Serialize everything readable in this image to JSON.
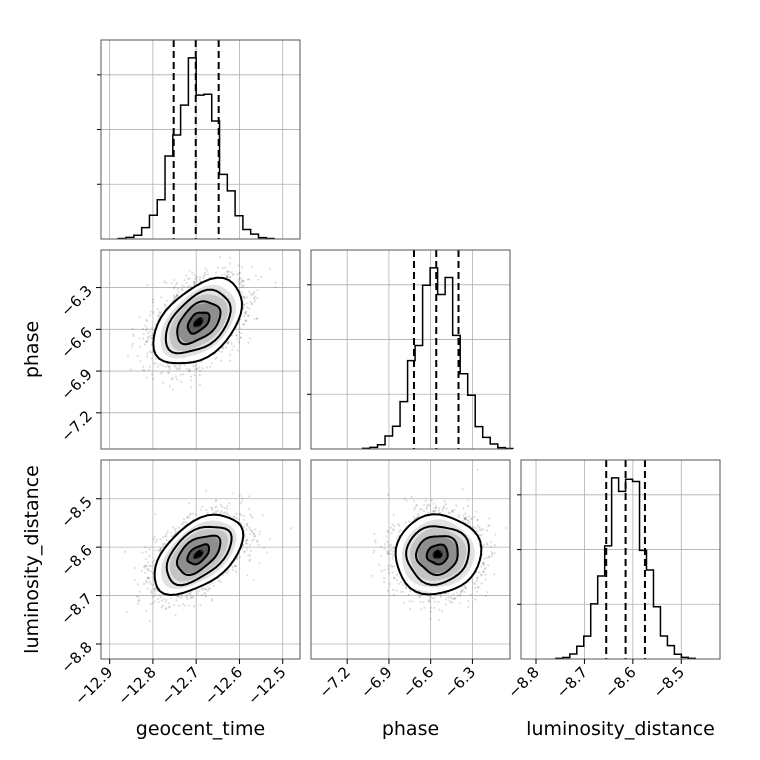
{
  "chart_data": {
    "type": "corner",
    "parameters": [
      "geocent_time",
      "phase",
      "luminosity_distance"
    ],
    "grid": true,
    "contour_levels": 4,
    "axes": {
      "geocent_time": {
        "range": [
          -12.92,
          -12.46
        ],
        "ticks": [
          -12.9,
          -12.8,
          -12.7,
          -12.6,
          -12.5
        ],
        "tick_labels": [
          "−12.9",
          "−12.8",
          "−12.7",
          "−12.6",
          "−12.5"
        ]
      },
      "phase": {
        "range": [
          -7.46,
          -6.03
        ],
        "ticks": [
          -7.2,
          -6.9,
          -6.6,
          -6.3
        ],
        "tick_labels": [
          "−7.2",
          "−6.9",
          "−6.6",
          "−6.3"
        ]
      },
      "luminosity_distance": {
        "range": [
          -8.831,
          -8.42
        ],
        "ticks": [
          -8.8,
          -8.7,
          -8.6,
          -8.5
        ],
        "tick_labels": [
          "−8.8",
          "−8.7",
          "−8.6",
          "−8.5"
        ]
      }
    },
    "marginals": {
      "geocent_time": {
        "mean": -12.7,
        "sigma": 0.05,
        "quantiles": [
          -12.752,
          -12.701,
          -12.648
        ]
      },
      "phase": {
        "mean": -6.55,
        "sigma": 0.15,
        "quantiles": [
          -6.72,
          -6.56,
          -6.4
        ]
      },
      "luminosity_distance": {
        "mean": -8.615,
        "sigma": 0.04,
        "quantiles": [
          -8.655,
          -8.615,
          -8.575
        ]
      }
    },
    "panels_2d": [
      {
        "x": "geocent_time",
        "y": "phase",
        "center": [
          -12.695,
          -6.55
        ],
        "correlation": 0.45
      },
      {
        "x": "geocent_time",
        "y": "luminosity_distance",
        "center": [
          -12.695,
          -8.615
        ],
        "correlation": 0.5
      },
      {
        "x": "phase",
        "y": "luminosity_distance",
        "center": [
          -6.55,
          -8.615
        ],
        "correlation": 0.05
      }
    ]
  }
}
